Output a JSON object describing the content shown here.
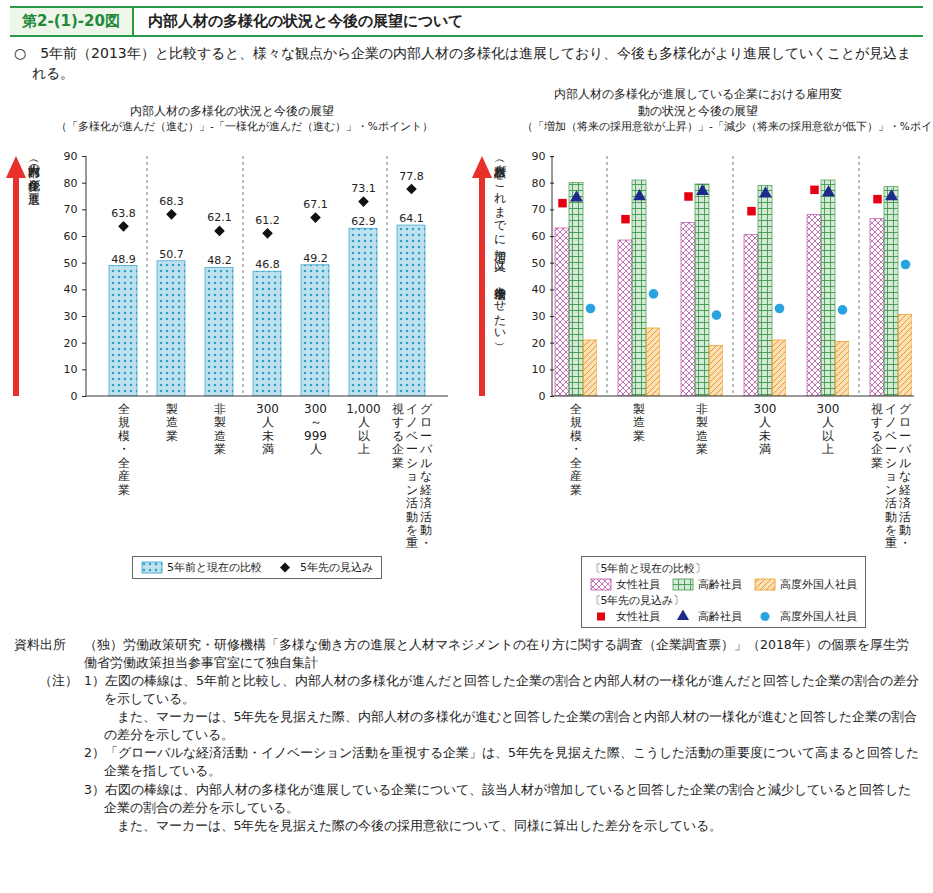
{
  "header": {
    "figure_number": "第2-(1)-20図",
    "title": "内部人材の多様化の状況と今後の展望について",
    "summary": "○　5年前（2013年）と比較すると、様々な観点から企業の内部人材の多様化は進展しており、今後も多様化がより進展していくことが見込まれる。"
  },
  "chart_data": [
    {
      "type": "bar",
      "title": "内部人材の多様化の状況と今後の展望",
      "subtitle": "（「多様化が進んだ（進む）」-「一様化が進んだ（進む）」・%ポイント）",
      "y_label": "（内部人材の多様化が進展）",
      "categories": [
        "全規模・全産業",
        "製造業",
        "非製造業",
        "300人未満",
        "300～999人",
        "1,000人以上",
        "グローバルな経済活動・イノベーション活動を重視する企業"
      ],
      "series": [
        {
          "name": "5年前と現在の比較",
          "type": "bar",
          "color": "#2f9fc8",
          "values": [
            48.9,
            50.7,
            48.2,
            46.8,
            49.2,
            62.9,
            64.1
          ]
        },
        {
          "name": "5年先の見込み",
          "type": "scatter",
          "marker": "diamond",
          "color": "#111111",
          "values": [
            63.8,
            68.3,
            62.1,
            61.2,
            67.1,
            73.1,
            77.8
          ]
        }
      ],
      "ylim": [
        0,
        90
      ],
      "yticks": [
        0,
        10,
        20,
        30,
        40,
        50,
        60,
        70,
        80,
        90
      ],
      "data_labels": true,
      "grid": false,
      "legend": "bottom"
    },
    {
      "type": "bar",
      "title": "内部人材の多様化が進展している企業における雇用変動の状況と今後の展望",
      "subtitle": "（「増加（将来の採用意欲が上昇）」-「減少（将来の採用意欲が低下）」・%ポイント）",
      "y_label": "（該当人材がこれまでに増加、又は、今後増加させたい）",
      "categories": [
        "全規模・全産業",
        "製造業",
        "非製造業",
        "300人未満",
        "300人以上",
        "グローバルな経済活動・イノベーション活動を重視する企業"
      ],
      "series_groups": [
        {
          "name": "〔5年前と現在の比較〕",
          "type": "bar",
          "series": [
            {
              "name": "女性社員",
              "color": "#b84fa6",
              "values": [
                63,
                58.5,
                65,
                60.5,
                68,
                66.5
              ]
            },
            {
              "name": "高齢社員",
              "color": "#3f9a4a",
              "values": [
                80,
                81,
                79.5,
                79,
                81,
                78.5
              ]
            },
            {
              "name": "高度外国人社員",
              "color": "#ee9a1c",
              "values": [
                21,
                25.5,
                19,
                21,
                20.5,
                30.5
              ]
            }
          ]
        },
        {
          "name": "〔5年先の見込み〕",
          "type": "scatter",
          "series": [
            {
              "name": "女性社員",
              "marker": "square",
              "color": "#e60012",
              "values": [
                72.5,
                66.5,
                75,
                69.5,
                77.5,
                74
              ]
            },
            {
              "name": "高齢社員",
              "marker": "triangle",
              "color": "#1d2a8c",
              "values": [
                74.5,
                75,
                77,
                76,
                76.5,
                75
              ]
            },
            {
              "name": "高度外国人社員",
              "marker": "circle",
              "color": "#29a3e0",
              "values": [
                33,
                38.5,
                30.5,
                33,
                32.5,
                49.5
              ]
            }
          ]
        }
      ],
      "ylim": [
        0,
        90
      ],
      "yticks": [
        0,
        10,
        20,
        30,
        40,
        50,
        60,
        70,
        80,
        90
      ],
      "data_labels": false,
      "grid": false,
      "legend": "bottom"
    }
  ],
  "source": {
    "label": "資料出所",
    "text": "（独）労働政策研究・研修機構「多様な働き方の進展と人材マネジメントの在り方に関する調査（企業調査票）」（2018年）の個票を厚生労働省労働政策担当参事官室にて独自集計"
  },
  "notes": {
    "label": "（注）",
    "items": [
      [
        "1）左図の棒線は、5年前と比較し、内部人材の多様化が進んだと回答した企業の割合と内部人材の一様化が進んだと回答した企業の割合の差分を示している。",
        "また、マーカーは、5年先を見据えた際、内部人材の多様化が進むと回答した企業の割合と内部人材の一様化が進むと回答した企業の割合の差分を示している。"
      ],
      [
        "2）「グローバルな経済活動・イノベーション活動を重視する企業」は、5年先を見据えた際、こうした活動の重要度について高まると回答した企業を指している。"
      ],
      [
        "3）右図の棒線は、内部人材の多様化が進展している企業について、該当人材が増加していると回答した企業の割合と減少していると回答した企業の割合の差分を示している。",
        "また、マーカーは、5年先を見据えた際の今後の採用意欲について、同様に算出した差分を示している。"
      ]
    ]
  }
}
